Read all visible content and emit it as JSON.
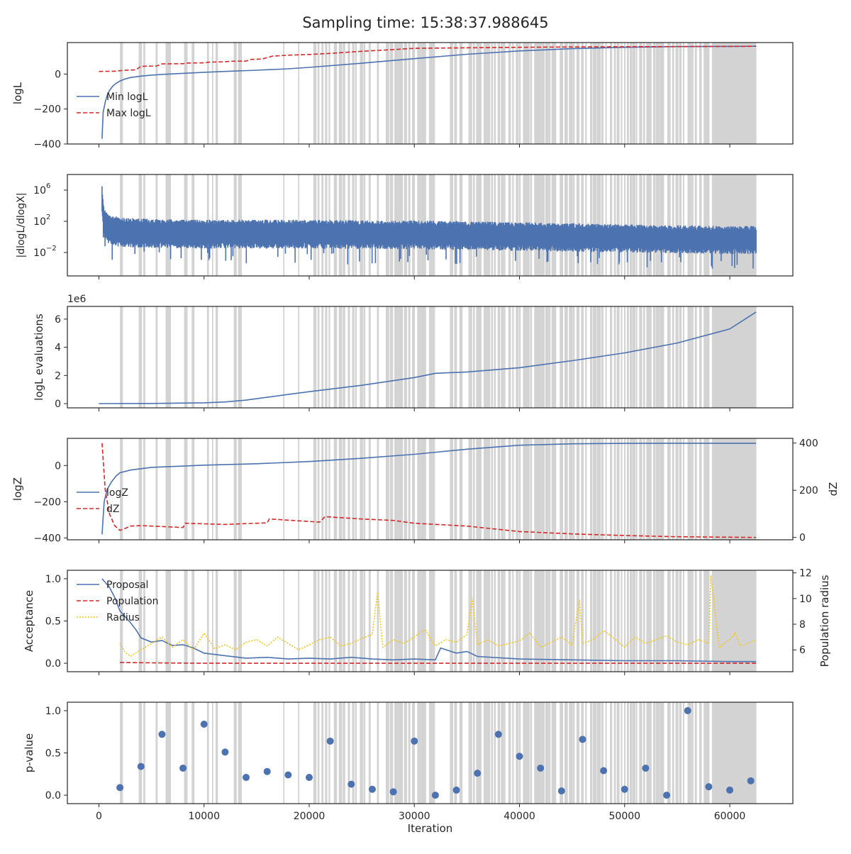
{
  "figure": {
    "title": "Sampling time: 15:38:37.988645"
  },
  "colors": {
    "blue": "#4c72b0",
    "red": "#d62728",
    "yellow": "#f5c518",
    "shade": "#d3d3d3",
    "axis": "#262626"
  },
  "chart_data": [
    {
      "type": "line",
      "ylabel": "logL",
      "xlim": [
        -3000,
        66000
      ],
      "ylim": [
        -400,
        180
      ],
      "yticks": [
        -400,
        -200,
        0
      ],
      "ytick_labels": [
        "−400",
        "−200",
        "0"
      ],
      "legend": {
        "placement": "lower-left",
        "entries": [
          "Min logL",
          "Max logL"
        ]
      },
      "series": [
        {
          "name": "Min logL",
          "color": "blue",
          "style": "solid",
          "x": [
            300,
            400,
            600,
            800,
            1000,
            1300,
            1600,
            2000,
            2500,
            3000,
            4000,
            5000,
            6000,
            8000,
            10000,
            12000,
            15000,
            18000,
            20000,
            25000,
            30000,
            35000,
            40000,
            45000,
            50000,
            55000,
            60000,
            62500
          ],
          "y": [
            -370,
            -220,
            -160,
            -120,
            -95,
            -70,
            -55,
            -40,
            -28,
            -20,
            -12,
            -6,
            -2,
            4,
            10,
            15,
            22,
            30,
            38,
            62,
            88,
            113,
            132,
            145,
            153,
            157,
            158,
            159
          ]
        },
        {
          "name": "Max logL",
          "color": "red",
          "style": "dashed",
          "x": [
            0,
            1500,
            2500,
            3500,
            4000,
            5500,
            6000,
            8000,
            8500,
            10000,
            10500,
            12000,
            12500,
            14000,
            14500,
            15500,
            16500,
            18000,
            20000,
            22000,
            25000,
            28000,
            30000,
            35000,
            40000,
            45000,
            50000,
            55000,
            60000,
            62500
          ],
          "y": [
            15,
            16,
            22,
            24,
            44,
            46,
            58,
            59,
            63,
            64,
            68,
            70,
            73,
            74,
            84,
            86,
            102,
            108,
            112,
            118,
            130,
            140,
            147,
            150,
            153,
            155,
            156,
            157,
            158,
            159
          ]
        }
      ]
    },
    {
      "type": "line",
      "ylabel": "|dlogL/dlogX|",
      "yscale": "log",
      "xlim": [
        -3000,
        66000
      ],
      "ylim_exp": [
        -5,
        8
      ],
      "yticks": [
        "10^6",
        "10^2",
        "10^-2"
      ],
      "legend": null,
      "series": [
        {
          "name": "",
          "color": "blue",
          "style": "solid",
          "x": [
            300,
            500,
            1000,
            2000,
            5000,
            10000,
            20000,
            30000,
            40000,
            50000,
            60000,
            62500
          ],
          "y_log10_upper": [
            6.5,
            3.5,
            2.8,
            2.5,
            2.3,
            2.2,
            2.2,
            2.1,
            1.9,
            1.6,
            1.4,
            1.4
          ],
          "y_log10_lower": [
            2.5,
            0,
            -1,
            -1.3,
            -1.4,
            -1.5,
            -1.5,
            -1.6,
            -1.8,
            -2.0,
            -2.2,
            -2.2
          ]
        }
      ]
    },
    {
      "type": "line",
      "ylabel": "logL evaluations",
      "offset_label": "1e6",
      "xlim": [
        -3000,
        66000
      ],
      "ylim": [
        -0.3,
        6.9
      ],
      "yticks": [
        0,
        2,
        4,
        6
      ],
      "ytick_labels": [
        "0",
        "2",
        "4",
        "6"
      ],
      "legend": null,
      "series": [
        {
          "name": "",
          "color": "blue",
          "style": "solid",
          "x": [
            0,
            5000,
            10000,
            12000,
            14000,
            16000,
            18000,
            20000,
            25000,
            30000,
            32000,
            35000,
            40000,
            45000,
            50000,
            55000,
            60000,
            62500
          ],
          "y": [
            0,
            0.01,
            0.06,
            0.12,
            0.25,
            0.45,
            0.65,
            0.85,
            1.3,
            1.85,
            2.15,
            2.25,
            2.55,
            3.05,
            3.6,
            4.3,
            5.3,
            6.5
          ]
        }
      ]
    },
    {
      "type": "line",
      "ylabel": "logZ",
      "ylabel_right": "dZ",
      "xlim": [
        -3000,
        66000
      ],
      "ylim": [
        -410,
        150
      ],
      "ylim_right": [
        -10,
        420
      ],
      "yticks": [
        -400,
        -200,
        0
      ],
      "ytick_labels": [
        "−400",
        "−200",
        "0"
      ],
      "yticks_right": [
        0,
        200,
        400
      ],
      "legend": {
        "placement": "lower-left",
        "entries": [
          "logZ",
          "dZ"
        ]
      },
      "series": [
        {
          "name": "logZ",
          "color": "blue",
          "style": "solid",
          "axis": "left",
          "x": [
            300,
            500,
            800,
            1200,
            1600,
            2000,
            3000,
            5000,
            8000,
            10000,
            15000,
            20000,
            25000,
            30000,
            35000,
            40000,
            45000,
            50000,
            55000,
            62500
          ],
          "y": [
            -380,
            -200,
            -130,
            -90,
            -60,
            -40,
            -25,
            -10,
            -3,
            2,
            10,
            22,
            40,
            62,
            90,
            112,
            120,
            122,
            123,
            123
          ]
        },
        {
          "name": "dZ",
          "color": "red",
          "style": "dashed",
          "axis": "right",
          "x": [
            300,
            600,
            1000,
            1500,
            2000,
            2500,
            3000,
            4000,
            8000,
            8200,
            12000,
            16000,
            16200,
            21000,
            21500,
            25000,
            28000,
            30000,
            35000,
            40000,
            45000,
            50000,
            55000,
            62500
          ],
          "y": [
            400,
            200,
            100,
            50,
            30,
            38,
            48,
            50,
            42,
            60,
            55,
            62,
            78,
            65,
            88,
            78,
            72,
            60,
            48,
            25,
            15,
            8,
            3,
            0
          ]
        }
      ]
    },
    {
      "type": "line",
      "ylabel": "Acceptance",
      "ylabel_right": "Population radius",
      "xlim": [
        -3000,
        66000
      ],
      "ylim": [
        -0.1,
        1.1
      ],
      "ylim_right": [
        4.3,
        12.2
      ],
      "yticks": [
        0.0,
        0.5,
        1.0
      ],
      "ytick_labels": [
        "0.0",
        "0.5",
        "1.0"
      ],
      "yticks_right": [
        6,
        8,
        10,
        12
      ],
      "legend": {
        "placement": "upper-left",
        "entries": [
          "Proposal",
          "Population",
          "Radius"
        ]
      },
      "series": [
        {
          "name": "Proposal",
          "color": "blue",
          "style": "solid",
          "axis": "left",
          "x": [
            300,
            1000,
            1500,
            2000,
            2500,
            3000,
            3500,
            4000,
            5000,
            6000,
            7000,
            8000,
            9000,
            10000,
            12000,
            14000,
            16000,
            18000,
            20000,
            22000,
            24000,
            26000,
            28000,
            30000,
            32000,
            32500,
            33000,
            34000,
            35000,
            36000,
            40000,
            45000,
            50000,
            55000,
            60000,
            62500
          ],
          "y": [
            1.0,
            0.9,
            0.78,
            0.62,
            0.55,
            0.48,
            0.4,
            0.3,
            0.25,
            0.27,
            0.21,
            0.22,
            0.18,
            0.12,
            0.09,
            0.06,
            0.07,
            0.05,
            0.06,
            0.05,
            0.07,
            0.05,
            0.04,
            0.05,
            0.04,
            0.18,
            0.16,
            0.12,
            0.14,
            0.08,
            0.05,
            0.04,
            0.03,
            0.03,
            0.02,
            0.02
          ]
        },
        {
          "name": "Population",
          "color": "red",
          "style": "dashed",
          "axis": "left",
          "x": [
            2000,
            5000,
            10000,
            20000,
            30000,
            40000,
            50000,
            62500
          ],
          "y": [
            0.01,
            0.005,
            0.0,
            0.0,
            0.0,
            0.0,
            0.0,
            0.0
          ]
        },
        {
          "name": "Radius",
          "color": "yellow",
          "style": "dotted",
          "axis": "right",
          "x": [
            2000,
            2500,
            3000,
            4000,
            5000,
            6000,
            7000,
            8000,
            9000,
            10000,
            11000,
            12000,
            13000,
            14000,
            15000,
            16000,
            17000,
            18000,
            19000,
            20000,
            21000,
            22000,
            23000,
            24000,
            25000,
            26000,
            26500,
            27000,
            28000,
            29000,
            30000,
            31000,
            32000,
            33000,
            34000,
            35000,
            35500,
            36000,
            37000,
            38000,
            39000,
            40000,
            41000,
            42000,
            43000,
            44000,
            45000,
            45700,
            46000,
            47000,
            48000,
            49000,
            50000,
            51000,
            52000,
            53000,
            54000,
            55000,
            56000,
            57000,
            58000,
            58200,
            59000,
            60000,
            60500,
            61000,
            62000,
            62500
          ],
          "y": [
            6.5,
            5.8,
            5.5,
            6.0,
            6.5,
            7.0,
            6.2,
            6.8,
            6.0,
            7.3,
            6.1,
            6.4,
            6.0,
            6.6,
            6.8,
            6.3,
            7.0,
            6.5,
            6.0,
            6.4,
            6.8,
            7.0,
            6.3,
            6.5,
            6.9,
            7.2,
            10.5,
            6.2,
            6.8,
            6.5,
            7.0,
            7.6,
            6.3,
            6.8,
            6.6,
            7.2,
            10.0,
            6.4,
            6.8,
            6.3,
            6.5,
            6.7,
            7.3,
            6.2,
            6.6,
            7.0,
            6.4,
            9.9,
            6.5,
            6.8,
            7.5,
            6.9,
            6.2,
            7.0,
            6.5,
            6.8,
            7.1,
            6.6,
            6.4,
            6.8,
            6.5,
            11.8,
            6.2,
            6.8,
            7.3,
            6.3,
            6.6,
            6.8
          ]
        }
      ]
    },
    {
      "type": "scatter",
      "ylabel": "p-value",
      "xlabel": "Iteration",
      "xlim": [
        -3000,
        66000
      ],
      "ylim": [
        -0.1,
        1.1
      ],
      "yticks": [
        0.0,
        0.5,
        1.0
      ],
      "ytick_labels": [
        "0.0",
        "0.5",
        "1.0"
      ],
      "xticks": [
        0,
        10000,
        20000,
        30000,
        40000,
        50000,
        60000
      ],
      "xtick_labels": [
        "0",
        "10000",
        "20000",
        "30000",
        "40000",
        "50000",
        "60000"
      ],
      "legend": null,
      "series": [
        {
          "name": "",
          "color": "blue",
          "x": [
            2000,
            4000,
            6000,
            8000,
            10000,
            12000,
            14000,
            16000,
            18000,
            20000,
            22000,
            24000,
            26000,
            28000,
            30000,
            32000,
            34000,
            36000,
            38000,
            40000,
            42000,
            44000,
            46000,
            48000,
            50000,
            52000,
            54000,
            56000,
            58000,
            60000,
            62000
          ],
          "y": [
            0.09,
            0.34,
            0.72,
            0.32,
            0.84,
            0.51,
            0.21,
            0.28,
            0.24,
            0.21,
            0.64,
            0.13,
            0.07,
            0.04,
            0.64,
            0.0,
            0.06,
            0.26,
            0.72,
            0.46,
            0.32,
            0.05,
            0.66,
            0.29,
            0.07,
            0.32,
            0.0,
            1.0,
            0.1,
            0.06,
            0.17
          ]
        }
      ]
    }
  ]
}
